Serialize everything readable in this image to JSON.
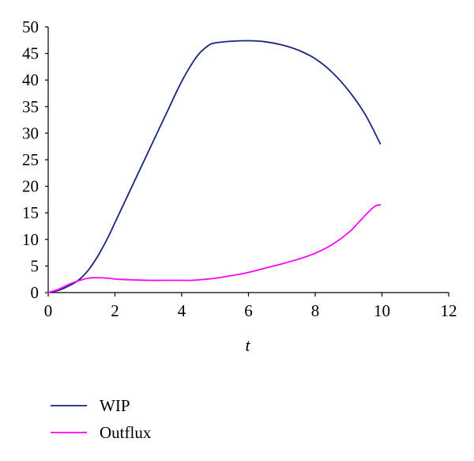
{
  "chart_data": {
    "type": "line",
    "title": "",
    "xlabel": "t",
    "ylabel": "",
    "xlim": [
      0,
      12
    ],
    "ylim": [
      0,
      50
    ],
    "x_ticks": [
      0,
      2,
      4,
      6,
      8,
      10,
      12
    ],
    "y_ticks": [
      0,
      5,
      10,
      15,
      20,
      25,
      30,
      35,
      40,
      45,
      50
    ],
    "grid": false,
    "legend_position": "bottom-left",
    "series": [
      {
        "name": "WIP",
        "color": "#1a237e",
        "points": [
          [
            0,
            0
          ],
          [
            0.3,
            0.4
          ],
          [
            0.6,
            1.2
          ],
          [
            0.9,
            2.3
          ],
          [
            1.2,
            4.2
          ],
          [
            1.5,
            7
          ],
          [
            1.8,
            10.5
          ],
          [
            2.1,
            14.5
          ],
          [
            2.4,
            18.5
          ],
          [
            2.7,
            22.5
          ],
          [
            3.0,
            26.5
          ],
          [
            3.3,
            30.5
          ],
          [
            3.6,
            34.5
          ],
          [
            3.9,
            38.5
          ],
          [
            4.2,
            42
          ],
          [
            4.5,
            44.8
          ],
          [
            4.8,
            46.5
          ],
          [
            5.0,
            47
          ],
          [
            5.5,
            47.3
          ],
          [
            6.0,
            47.4
          ],
          [
            6.5,
            47.2
          ],
          [
            7.0,
            46.6
          ],
          [
            7.5,
            45.6
          ],
          [
            8.0,
            44
          ],
          [
            8.5,
            41.5
          ],
          [
            9.0,
            38
          ],
          [
            9.5,
            33.5
          ],
          [
            9.95,
            28
          ]
        ]
      },
      {
        "name": "Outflux",
        "color": "#ff00ff",
        "points": [
          [
            0,
            0
          ],
          [
            0.3,
            0.6
          ],
          [
            0.6,
            1.5
          ],
          [
            0.9,
            2.2
          ],
          [
            1.2,
            2.7
          ],
          [
            1.5,
            2.8
          ],
          [
            1.8,
            2.7
          ],
          [
            2.1,
            2.5
          ],
          [
            2.5,
            2.4
          ],
          [
            3.0,
            2.3
          ],
          [
            3.5,
            2.3
          ],
          [
            4.0,
            2.3
          ],
          [
            4.3,
            2.3
          ],
          [
            4.7,
            2.5
          ],
          [
            5.0,
            2.7
          ],
          [
            5.5,
            3.2
          ],
          [
            6.0,
            3.8
          ],
          [
            6.5,
            4.6
          ],
          [
            7.0,
            5.4
          ],
          [
            7.5,
            6.3
          ],
          [
            8.0,
            7.4
          ],
          [
            8.5,
            9
          ],
          [
            9.0,
            11.3
          ],
          [
            9.3,
            13.2
          ],
          [
            9.6,
            15.2
          ],
          [
            9.8,
            16.3
          ],
          [
            9.95,
            16.5
          ]
        ]
      }
    ]
  }
}
